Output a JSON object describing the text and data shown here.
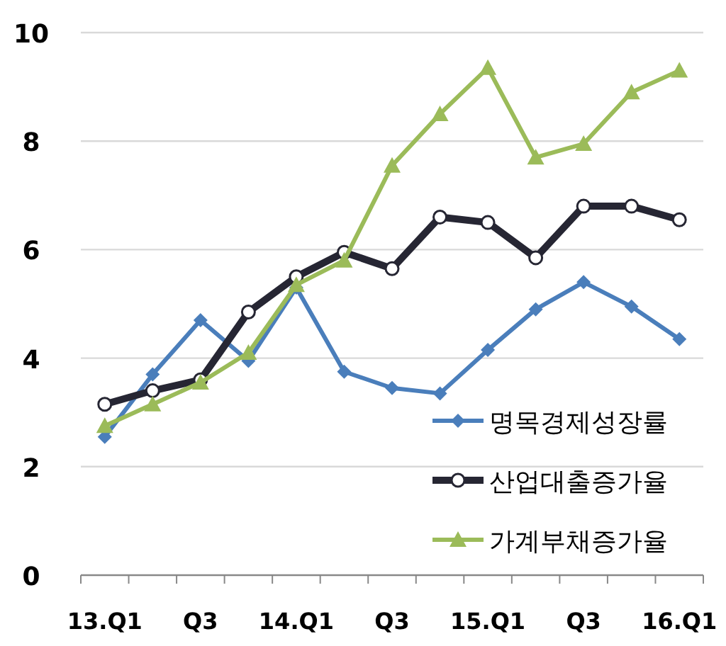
{
  "chart_data": {
    "type": "line",
    "categories": [
      "13.Q1",
      null,
      "Q3",
      null,
      "14.Q1",
      null,
      "Q3",
      null,
      "15.Q1",
      null,
      "Q3",
      null,
      "16.Q1"
    ],
    "series": [
      {
        "name": "명목경제성장률",
        "color": "#4a7ebb",
        "marker": "diamond",
        "values": [
          2.55,
          3.7,
          4.7,
          3.95,
          5.3,
          3.75,
          3.45,
          3.35,
          4.15,
          4.9,
          5.4,
          4.95,
          4.35
        ]
      },
      {
        "name": "산업대출증가율",
        "color": "#262633",
        "marker": "circle",
        "values": [
          3.15,
          3.4,
          3.6,
          4.85,
          5.5,
          5.95,
          5.65,
          6.6,
          6.5,
          5.85,
          6.8,
          6.8,
          6.55
        ]
      },
      {
        "name": "가계부채증가율",
        "color": "#9bbb59",
        "marker": "triangle",
        "values": [
          2.75,
          3.15,
          3.55,
          4.1,
          5.35,
          5.8,
          7.55,
          8.5,
          9.35,
          7.7,
          7.95,
          8.9,
          9.3
        ]
      }
    ],
    "ylim": [
      0,
      10
    ],
    "yticks": [
      0,
      2,
      4,
      6,
      8,
      10
    ],
    "grid": "y",
    "legend": "bottom right"
  }
}
